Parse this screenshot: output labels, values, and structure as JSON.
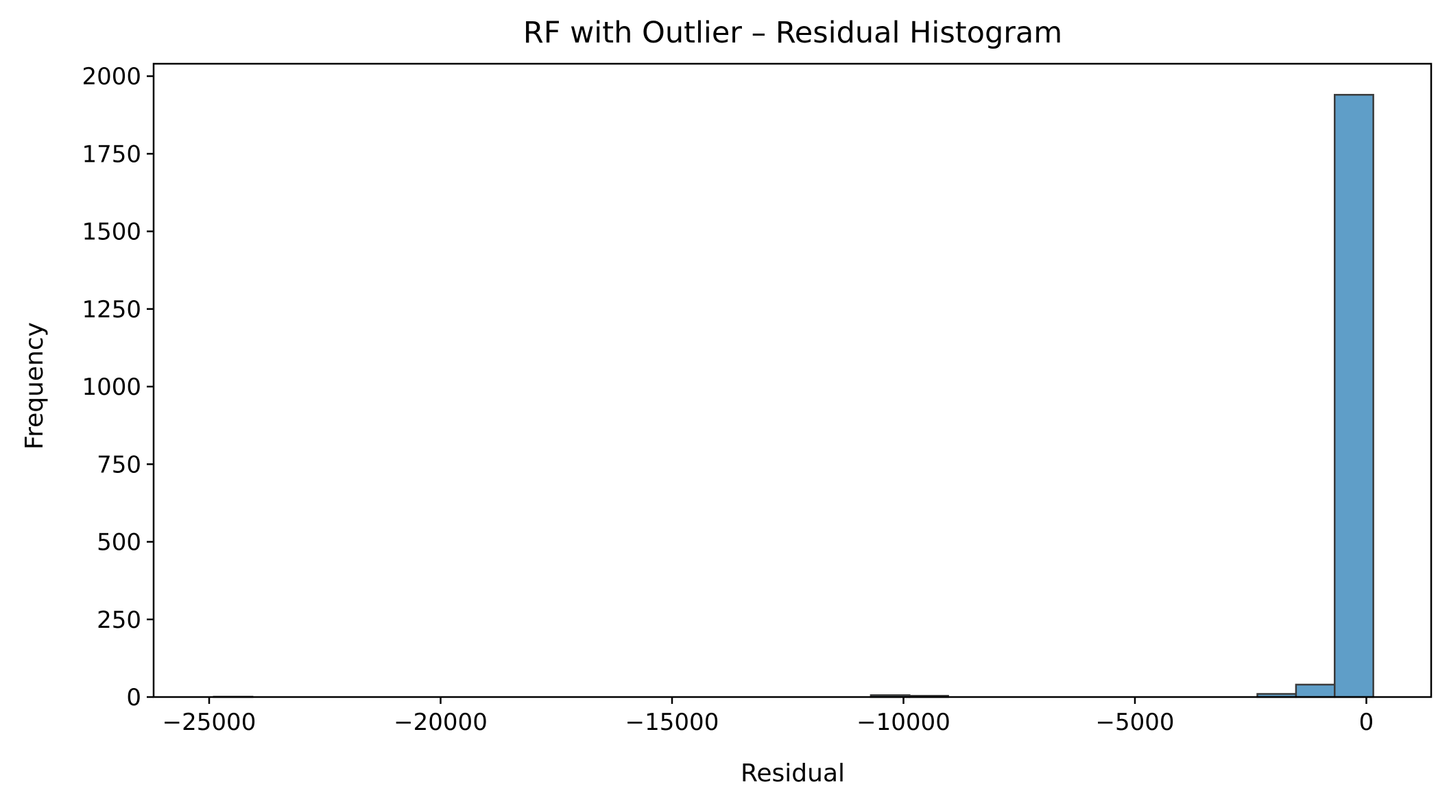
{
  "chart_data": {
    "type": "histogram",
    "title": "RF with Outlier – Residual Histogram",
    "xlabel": "Residual",
    "ylabel": "Frequency",
    "xlim": [
      -26200,
      1400
    ],
    "ylim": [
      0,
      2040
    ],
    "xticks": [
      {
        "value": -25000,
        "label": "−25000"
      },
      {
        "value": -20000,
        "label": "−20000"
      },
      {
        "value": -15000,
        "label": "−15000"
      },
      {
        "value": -10000,
        "label": "−10000"
      },
      {
        "value": -5000,
        "label": "−5000"
      },
      {
        "value": 0,
        "label": "0"
      }
    ],
    "yticks": [
      {
        "value": 0,
        "label": "0"
      },
      {
        "value": 250,
        "label": "250"
      },
      {
        "value": 500,
        "label": "500"
      },
      {
        "value": 750,
        "label": "750"
      },
      {
        "value": 1000,
        "label": "1000"
      },
      {
        "value": 1250,
        "label": "1250"
      },
      {
        "value": 1500,
        "label": "1500"
      },
      {
        "value": 1750,
        "label": "1750"
      },
      {
        "value": 2000,
        "label": "2000"
      }
    ],
    "bin_edges": [
      -24900,
      -24065,
      -23230,
      -22395,
      -21560,
      -20725,
      -19890,
      -19055,
      -18220,
      -17385,
      -16550,
      -15715,
      -14880,
      -14045,
      -13210,
      -12375,
      -11540,
      -10705,
      -9870,
      -9035,
      -8200,
      -7365,
      -6530,
      -5695,
      -4860,
      -4025,
      -3190,
      -2355,
      -1520,
      -685,
      150
    ],
    "counts": [
      1,
      0,
      0,
      0,
      0,
      0,
      0,
      0,
      0,
      0,
      0,
      0,
      0,
      0,
      0,
      0,
      0,
      6,
      4,
      0,
      0,
      0,
      0,
      0,
      0,
      0,
      0,
      10,
      40,
      1940
    ],
    "grid": false,
    "colors": {
      "bar_fill": "#5f9ec8",
      "bar_edge": "#3a3a3a"
    }
  }
}
